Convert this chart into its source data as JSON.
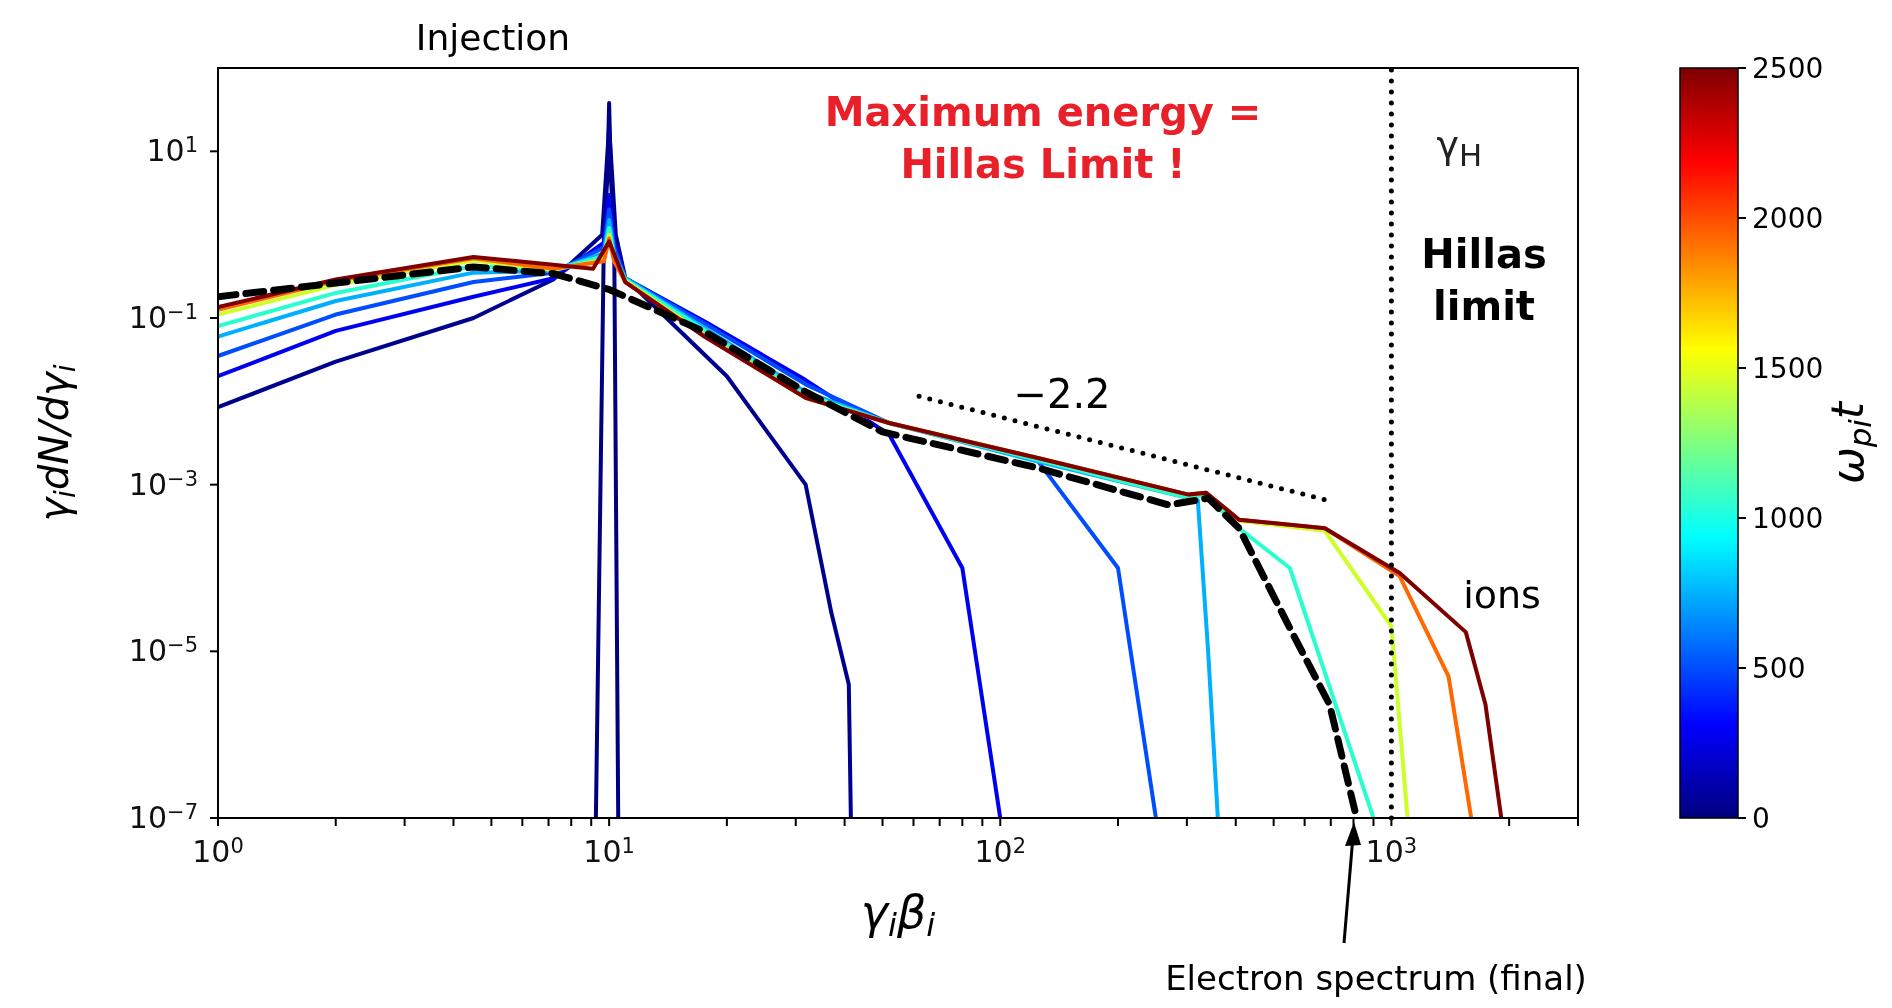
{
  "chart_data": {
    "type": "line",
    "xlabel": "γ$_{i}$β$_{i}$",
    "ylabel": "γ$_{i}$dN/dγ$_{i}$",
    "clabel": "ω$_{pi}$t",
    "log": "xy",
    "marker": "none",
    "xlim": [
      1,
      3000
    ],
    "ylim": [
      1e-07,
      100
    ],
    "xticks": [
      {
        "value": 1,
        "label": "10$^{0}$"
      },
      {
        "value": 2,
        "label": null
      },
      {
        "value": 3,
        "label": null
      },
      {
        "value": 4,
        "label": null
      },
      {
        "value": 5,
        "label": null
      },
      {
        "value": 6,
        "label": null
      },
      {
        "value": 7,
        "label": null
      },
      {
        "value": 8,
        "label": null
      },
      {
        "value": 9,
        "label": null
      },
      {
        "value": 10,
        "label": "10$^{1}$"
      },
      {
        "value": 20,
        "label": null
      },
      {
        "value": 30,
        "label": null
      },
      {
        "value": 40,
        "label": null
      },
      {
        "value": 50,
        "label": null
      },
      {
        "value": 60,
        "label": null
      },
      {
        "value": 70,
        "label": null
      },
      {
        "value": 80,
        "label": null
      },
      {
        "value": 90,
        "label": null
      },
      {
        "value": 100,
        "label": "10$^{2}$"
      },
      {
        "value": 200,
        "label": null
      },
      {
        "value": 300,
        "label": null
      },
      {
        "value": 400,
        "label": null
      },
      {
        "value": 500,
        "label": null
      },
      {
        "value": 600,
        "label": null
      },
      {
        "value": 700,
        "label": null
      },
      {
        "value": 800,
        "label": null
      },
      {
        "value": 900,
        "label": null
      },
      {
        "value": 1000,
        "label": "10$^{3}$"
      },
      {
        "value": 2000,
        "label": null
      },
      {
        "value": 3000,
        "label": null
      }
    ],
    "yticks": [
      {
        "value": 1e-07,
        "label": "10$^{−7}$"
      },
      {
        "value": 1e-05,
        "label": "10$^{−5}$"
      },
      {
        "value": 0.001,
        "label": "10$^{−3}$"
      },
      {
        "value": 0.1,
        "label": "10$^{−1}$"
      },
      {
        "value": 10,
        "label": "10$^{1}$"
      }
    ],
    "clim": [
      0,
      2500
    ],
    "cticks": [
      0,
      500,
      1000,
      1500,
      2000,
      2500
    ],
    "series": [
      {
        "color": "#00007f",
        "x": [
          9.25,
          9.7,
          9.9,
          10,
          10.1,
          10.3,
          10.55
        ],
        "values": [
          1e-07,
          1,
          5,
          38,
          5,
          1,
          1e-07
        ]
      },
      {
        "color": "#00008f",
        "x": [
          1,
          2,
          4.5,
          7.2,
          9.6,
          10,
          10.4,
          11,
          20,
          31.8,
          37,
          41,
          41.5
        ],
        "values": [
          0.0085,
          0.03,
          0.1,
          0.29,
          1,
          20,
          1,
          0.3,
          0.02,
          0.001,
          2.9e-05,
          4e-06,
          1e-07
        ]
      },
      {
        "color": "#0000f1",
        "x": [
          1,
          2,
          4.5,
          7.2,
          9.7,
          10,
          10.3,
          11,
          17.6,
          31.8,
          52,
          80,
          100
        ],
        "values": [
          0.02,
          0.07,
          0.18,
          0.3,
          0.8,
          3,
          0.8,
          0.3,
          0.09,
          0.018,
          0.004,
          0.0001,
          1e-07
        ]
      },
      {
        "color": "#004cff",
        "x": [
          1,
          2,
          4.5,
          7.2,
          9.7,
          10,
          10.3,
          11,
          17.6,
          31.8,
          52,
          124,
          200,
          250
        ],
        "values": [
          0.035,
          0.11,
          0.27,
          0.35,
          0.7,
          2,
          0.7,
          0.3,
          0.085,
          0.016,
          0.0055,
          0.002,
          0.0001,
          1e-07
        ]
      },
      {
        "color": "#00b0ff",
        "x": [
          1,
          2,
          4.5,
          7.2,
          9.7,
          10,
          10.3,
          11,
          17.6,
          31.8,
          52,
          124,
          320,
          340,
          360
        ],
        "values": [
          0.06,
          0.16,
          0.35,
          0.37,
          0.6,
          1.5,
          0.6,
          0.3,
          0.075,
          0.013,
          0.0055,
          0.0019,
          0.00065,
          1e-05,
          1e-07
        ]
      },
      {
        "color": "#29ffce",
        "x": [
          1,
          2,
          4.5,
          7.2,
          9.7,
          10,
          10.3,
          11,
          17.6,
          31.8,
          52,
          124,
          300,
          336,
          408,
          550,
          900
        ],
        "values": [
          0.08,
          0.2,
          0.42,
          0.38,
          0.55,
          1.2,
          0.55,
          0.29,
          null,
          0.012,
          0.0055,
          0.002,
          0.0007,
          0.00075,
          0.0003,
          0.0001,
          1e-07
        ]
      },
      {
        "color": "#ceff29",
        "x": [
          1,
          2,
          4.5,
          7.2,
          9.7,
          10,
          10.3,
          11,
          17.6,
          31.8,
          52,
          124,
          303,
          336,
          408,
          676,
          1000,
          1100
        ],
        "values": [
          0.11,
          0.25,
          0.49,
          0.38,
          0.5,
          1,
          0.5,
          0.28,
          0.062,
          0.011,
          0.0055,
          0.0021,
          0.00076,
          0.0008,
          0.00037,
          0.00028,
          2e-05,
          1e-07
        ]
      },
      {
        "color": "#ff6800",
        "x": [
          1,
          2,
          4.5,
          7.2,
          9.7,
          10,
          10.3,
          11,
          17.6,
          31.8,
          52,
          124,
          303,
          336,
          408,
          676,
          1050,
          1400,
          1600
        ],
        "values": [
          0.125,
          0.28,
          0.52,
          0.39,
          0.48,
          0.9,
          0.48,
          0.27,
          0.06,
          0.011,
          0.0055,
          0.0021,
          0.00076,
          0.0008,
          0.00038,
          0.0003,
          8e-05,
          5e-06,
          1e-07
        ]
      },
      {
        "color": "#7f0000",
        "x": [
          1,
          2,
          4.5,
          9.1,
          10,
          11,
          17.6,
          31.8,
          52,
          124,
          303,
          336,
          408,
          676,
          1050,
          1550,
          1740,
          1910
        ],
        "values": [
          0.135,
          0.29,
          0.54,
          0.39,
          0.83,
          0.27,
          0.059,
          0.011,
          0.0055,
          0.0021,
          0.00076,
          0.0008,
          0.00038,
          0.0003,
          8.7e-05,
          1.7e-05,
          2.3e-06,
          1e-07
        ]
      },
      {
        "color": "#000000",
        "line_style": "dashed",
        "x": [
          1,
          4.5,
          7.2,
          10,
          17.6,
          31.8,
          50,
          124,
          270,
          340,
          408,
          550,
          695,
          815
        ],
        "values": [
          0.18,
          0.41,
          0.34,
          0.22,
          0.068,
          0.013,
          0.0043,
          0.0016,
          0.00057,
          0.00069,
          0.0003,
          1.9e-05,
          2.3e-06,
          1e-07
        ]
      },
      {
        "color": "#000000",
        "line_style": "dotted",
        "x": [
          62,
          676
        ],
        "values": [
          0.0115,
          0.00066
        ]
      }
    ],
    "ref_lines": [
      {
        "axis": "x",
        "value": 1000,
        "label": "γ$_{H}$",
        "color": "#000000",
        "line_style": "dotted"
      }
    ],
    "annotations": [
      "Maximum energy = Hillas Limit !",
      "Hillas limit",
      "Injection",
      "−2.2",
      "ions",
      "Electron spectrum (final)"
    ]
  }
}
